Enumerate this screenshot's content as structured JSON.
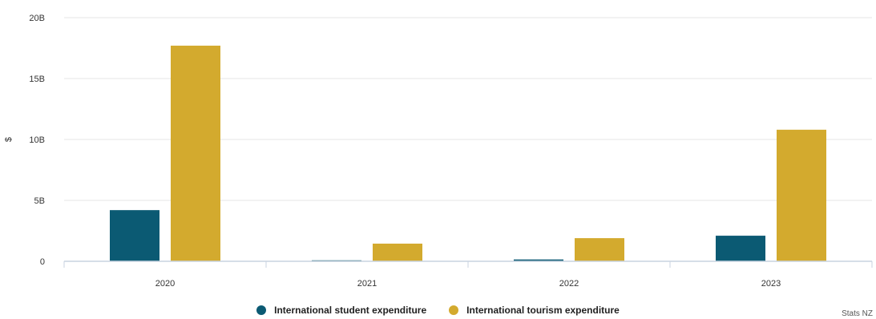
{
  "chart_data": {
    "type": "bar",
    "categories": [
      "2020",
      "2021",
      "2022",
      "2023"
    ],
    "series": [
      {
        "name": "International student expenditure",
        "color": "#0b5a73",
        "values": [
          4.2,
          0.08,
          0.15,
          2.1
        ]
      },
      {
        "name": "International tourism expenditure",
        "color": "#d3aa2e",
        "values": [
          17.7,
          1.45,
          1.9,
          10.8
        ]
      }
    ],
    "ylabel": "$",
    "ylim": [
      0,
      20
    ],
    "yticks": [
      {
        "value": 0,
        "label": "0"
      },
      {
        "value": 5,
        "label": "5B"
      },
      {
        "value": 10,
        "label": "10B"
      },
      {
        "value": 15,
        "label": "15B"
      },
      {
        "value": 20,
        "label": "20B"
      }
    ],
    "grid": true,
    "legend_position": "bottom-center",
    "credits": "Stats NZ"
  }
}
